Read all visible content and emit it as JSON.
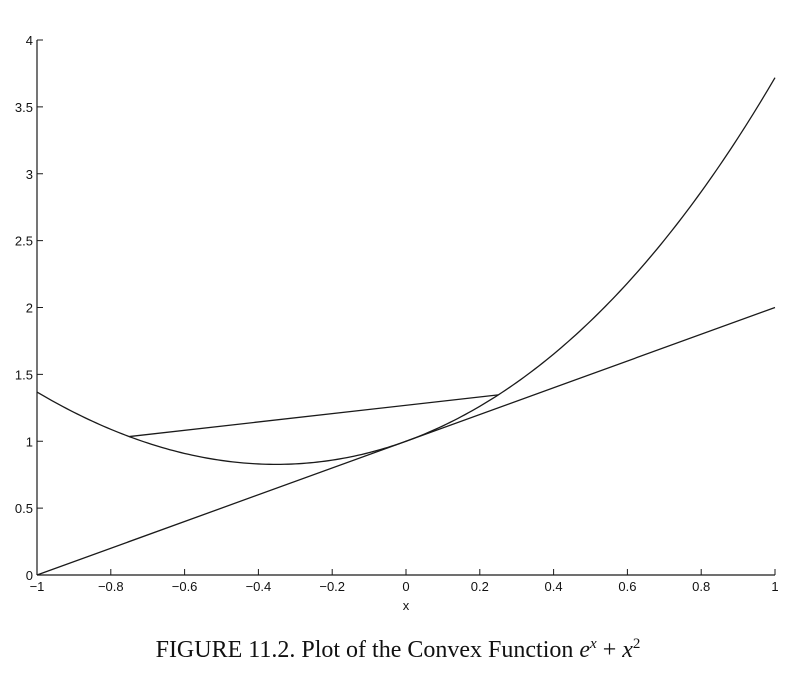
{
  "chart_data": {
    "type": "line",
    "title": "",
    "xlabel": "x",
    "ylabel": "",
    "xlim": [
      -1,
      1
    ],
    "ylim": [
      0,
      4
    ],
    "x_ticks": [
      -1,
      -0.8,
      -0.6,
      -0.4,
      -0.2,
      0,
      0.2,
      0.4,
      0.6,
      0.8,
      1
    ],
    "x_tick_labels": [
      "−1",
      "−0.8",
      "−0.6",
      "−0.4",
      "−0.2",
      "0",
      "0.2",
      "0.4",
      "0.6",
      "0.8",
      "1"
    ],
    "y_ticks": [
      0,
      0.5,
      1,
      1.5,
      2,
      2.5,
      3,
      3.5,
      4
    ],
    "y_tick_labels": [
      "0",
      "0.5",
      "1",
      "1.5",
      "2",
      "2.5",
      "3",
      "3.5",
      "4"
    ],
    "grid": false,
    "series": [
      {
        "function": "e^x + x^2",
        "x": [
          -1,
          -0.9,
          -0.8,
          -0.7,
          -0.6,
          -0.5,
          -0.4,
          -0.3,
          -0.2,
          -0.1,
          0,
          0.1,
          0.2,
          0.3,
          0.4,
          0.5,
          0.6,
          0.7,
          0.8,
          0.9,
          1
        ],
        "y": [
          1.368,
          1.217,
          1.089,
          0.987,
          0.909,
          0.857,
          0.83,
          0.831,
          0.859,
          0.915,
          1.0,
          1.115,
          1.261,
          1.44,
          1.652,
          1.899,
          2.182,
          2.504,
          2.866,
          3.27,
          3.718
        ]
      },
      {
        "function": "1 + x (tangent at x = 0)",
        "x": [
          -1,
          1
        ],
        "y": [
          0,
          2
        ]
      },
      {
        "function": "chord",
        "x": [
          -0.75,
          0.25
        ],
        "y": [
          1.035,
          1.347
        ]
      }
    ]
  },
  "caption": {
    "prefix": "FIGURE 11.2. Plot of the Convex Function ",
    "base1": "e",
    "sup1": "x",
    "plus": " + ",
    "base2": "x",
    "sup2": "2"
  },
  "colors": {
    "line": "#1a1a1a",
    "axis": "#1a1a1a",
    "background": "#ffffff"
  }
}
